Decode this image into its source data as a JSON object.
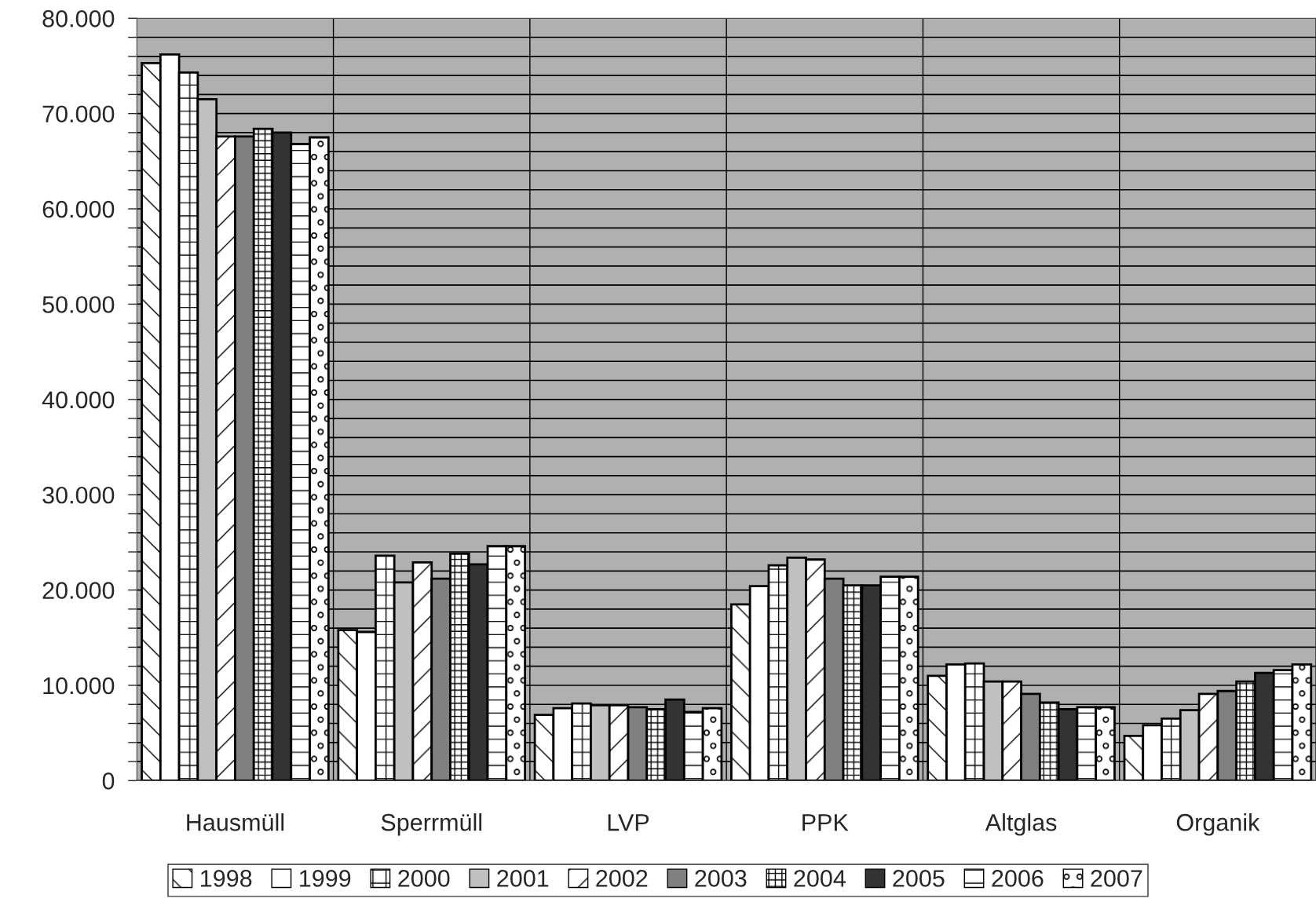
{
  "chart_data": {
    "type": "bar",
    "categories": [
      "Hausmüll",
      "Sperrmüll",
      "LVP",
      "PPK",
      "Altglas",
      "Organik"
    ],
    "series": [
      {
        "name": "1998",
        "color": "#000000",
        "values": [
          75300,
          15800,
          6900,
          18500,
          11000,
          4700
        ]
      },
      {
        "name": "1999",
        "color": "#ffffff",
        "values": [
          76200,
          15600,
          7600,
          20400,
          12200,
          5800
        ]
      },
      {
        "name": "2000",
        "color": "#000000",
        "values": [
          74300,
          23600,
          8100,
          22600,
          12300,
          6500
        ]
      },
      {
        "name": "2001",
        "color": "#c0c0c0",
        "values": [
          71500,
          20800,
          7900,
          23400,
          10400,
          7400
        ]
      },
      {
        "name": "2002",
        "color": "#000000",
        "values": [
          67600,
          22900,
          7900,
          23200,
          10400,
          9100
        ]
      },
      {
        "name": "2003",
        "color": "#808080",
        "values": [
          67600,
          21200,
          7700,
          21200,
          9100,
          9400
        ]
      },
      {
        "name": "2004",
        "color": "#000000",
        "values": [
          68400,
          23800,
          7500,
          20500,
          8200,
          10400
        ]
      },
      {
        "name": "2005",
        "color": "#333333",
        "values": [
          68000,
          22700,
          8500,
          20500,
          7500,
          11300
        ]
      },
      {
        "name": "2006",
        "color": "#000000",
        "values": [
          66800,
          24600,
          7200,
          21400,
          7700,
          11600
        ]
      },
      {
        "name": "2007",
        "color": "#000000",
        "values": [
          67500,
          24600,
          7600,
          21400,
          7700,
          12200
        ]
      }
    ],
    "ylim": [
      0,
      80000
    ],
    "yticks": [
      {
        "value": 0,
        "label": "0"
      },
      {
        "value": 2000,
        "label": null
      },
      {
        "value": 4000,
        "label": null
      },
      {
        "value": 6000,
        "label": null
      },
      {
        "value": 8000,
        "label": null
      },
      {
        "value": 10000,
        "label": "10.000"
      },
      {
        "value": 12000,
        "label": null
      },
      {
        "value": 14000,
        "label": null
      },
      {
        "value": 16000,
        "label": null
      },
      {
        "value": 18000,
        "label": null
      },
      {
        "value": 20000,
        "label": "20.000"
      },
      {
        "value": 22000,
        "label": null
      },
      {
        "value": 24000,
        "label": null
      },
      {
        "value": 26000,
        "label": null
      },
      {
        "value": 28000,
        "label": null
      },
      {
        "value": 30000,
        "label": "30.000"
      },
      {
        "value": 32000,
        "label": null
      },
      {
        "value": 34000,
        "label": null
      },
      {
        "value": 36000,
        "label": null
      },
      {
        "value": 38000,
        "label": null
      },
      {
        "value": 40000,
        "label": "40.000"
      },
      {
        "value": 42000,
        "label": null
      },
      {
        "value": 44000,
        "label": null
      },
      {
        "value": 46000,
        "label": null
      },
      {
        "value": 48000,
        "label": null
      },
      {
        "value": 50000,
        "label": "50.000"
      },
      {
        "value": 52000,
        "label": null
      },
      {
        "value": 54000,
        "label": null
      },
      {
        "value": 56000,
        "label": null
      },
      {
        "value": 58000,
        "label": null
      },
      {
        "value": 60000,
        "label": "60.000"
      },
      {
        "value": 62000,
        "label": null
      },
      {
        "value": 64000,
        "label": null
      },
      {
        "value": 66000,
        "label": null
      },
      {
        "value": 68000,
        "label": null
      },
      {
        "value": 70000,
        "label": "70.000"
      },
      {
        "value": 72000,
        "label": null
      },
      {
        "value": 74000,
        "label": null
      },
      {
        "value": 76000,
        "label": null
      },
      {
        "value": 78000,
        "label": null
      },
      {
        "value": 80000,
        "label": "80.000"
      }
    ],
    "grid": true,
    "legend": "bottom"
  }
}
